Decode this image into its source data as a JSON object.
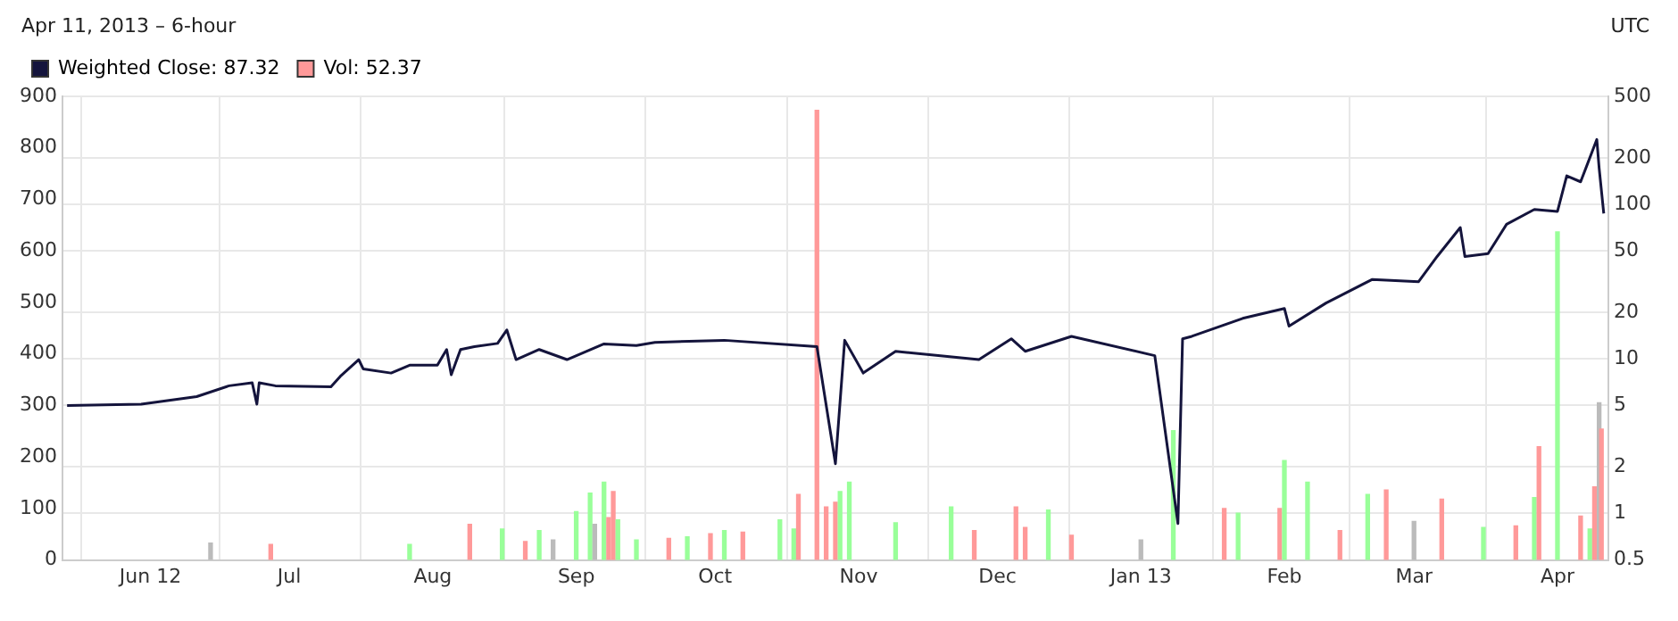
{
  "chart_data": {
    "type": "line",
    "subtitle": "Apr 11, 2013 – 6-hour",
    "annotations": [
      "UTC"
    ],
    "xlim": [
      "2012-05-13",
      "2013-04-12"
    ],
    "xticks": [
      {
        "value": "2012-06-01",
        "label": "Jun 12"
      },
      {
        "value": "2012-07-01",
        "label": "Jul"
      },
      {
        "value": "2012-08-01",
        "label": "Aug"
      },
      {
        "value": "2012-09-01",
        "label": "Sep"
      },
      {
        "value": "2012-10-01",
        "label": "Oct"
      },
      {
        "value": "2012-11-01",
        "label": "Nov"
      },
      {
        "value": "2012-12-01",
        "label": "Dec"
      },
      {
        "value": "2013-01-01",
        "label": "Jan 13"
      },
      {
        "value": "2013-02-01",
        "label": "Feb"
      },
      {
        "value": "2013-03-01",
        "label": "Mar"
      },
      {
        "value": "2013-04-01",
        "label": "Apr"
      }
    ],
    "ylim": [
      0,
      900
    ],
    "yticks": [
      0,
      100,
      200,
      300,
      400,
      500,
      600,
      700,
      800,
      900
    ],
    "y2lim": [
      0.5,
      500
    ],
    "y2ticks": [
      0.5,
      1,
      2,
      5,
      10,
      20,
      50,
      100,
      200,
      500
    ],
    "log": "y2",
    "grid": true,
    "legend": "top left",
    "marker": "none",
    "series": [
      {
        "name": "Weighted Close: 87.32",
        "axis": "y2",
        "color": "#14143c",
        "x": [
          "2012-05-14",
          "2012-05-30",
          "2012-06-11",
          "2012-06-18",
          "2012-06-23",
          "2012-06-24",
          "2012-06-24T12:00",
          "2012-06-28",
          "2012-07-10",
          "2012-07-12",
          "2012-07-16",
          "2012-07-17",
          "2012-07-23",
          "2012-07-27",
          "2012-08-02",
          "2012-08-04",
          "2012-08-05",
          "2012-08-07",
          "2012-08-10",
          "2012-08-15",
          "2012-08-17",
          "2012-08-19",
          "2012-08-24",
          "2012-08-30",
          "2012-09-07",
          "2012-09-14",
          "2012-09-18",
          "2012-10-03",
          "2012-10-23",
          "2012-10-27",
          "2012-10-29",
          "2012-11-02",
          "2012-11-09",
          "2012-11-27",
          "2012-12-04",
          "2012-12-07",
          "2012-12-17",
          "2013-01-04",
          "2013-01-09",
          "2013-01-10",
          "2013-01-12",
          "2013-01-23",
          "2013-02-01",
          "2013-02-02",
          "2013-02-10",
          "2013-02-20",
          "2013-03-02",
          "2013-03-06",
          "2013-03-11",
          "2013-03-12",
          "2013-03-17",
          "2013-03-21",
          "2013-03-27",
          "2013-04-01",
          "2013-04-03",
          "2013-04-06",
          "2013-04-09T12:00",
          "2013-04-10",
          "2013-04-11"
        ],
        "values": [
          5.0,
          5.1,
          5.7,
          6.7,
          7.0,
          5.1,
          7.0,
          6.7,
          6.6,
          7.7,
          9.9,
          8.6,
          8.1,
          9.1,
          9.1,
          11.5,
          7.9,
          11.5,
          12.0,
          12.6,
          15.4,
          9.9,
          11.5,
          9.9,
          12.5,
          12.2,
          12.8,
          13.2,
          12.0,
          2.1,
          13.2,
          8.1,
          11.2,
          9.9,
          13.5,
          11.2,
          14.0,
          10.5,
          0.86,
          13.5,
          14,
          18.3,
          21.2,
          16.3,
          23,
          32.7,
          31.6,
          46,
          70.8,
          46,
          48,
          74.3,
          92.7,
          90,
          153,
          140,
          263,
          172,
          87.32
        ]
      },
      {
        "name": "Vol: 52.37",
        "type": "bar",
        "color": "#ff9999",
        "x": [
          "2012-06-14",
          "2012-06-27",
          "2012-07-27",
          "2012-08-09",
          "2012-08-16",
          "2012-08-21",
          "2012-08-24",
          "2012-08-27",
          "2012-09-01",
          "2012-09-04",
          "2012-09-05",
          "2012-09-07",
          "2012-09-08",
          "2012-09-09",
          "2012-09-10",
          "2012-09-14",
          "2012-09-21",
          "2012-09-25",
          "2012-09-30",
          "2012-10-03",
          "2012-10-07",
          "2012-10-15",
          "2012-10-18",
          "2012-10-19",
          "2012-10-23",
          "2012-10-25",
          "2012-10-27",
          "2012-10-28",
          "2012-10-30",
          "2012-11-09",
          "2012-11-21",
          "2012-11-26",
          "2012-12-05",
          "2012-12-07",
          "2012-12-12",
          "2012-12-17",
          "2013-01-01",
          "2013-01-08",
          "2013-01-19",
          "2013-01-22",
          "2013-01-31",
          "2013-02-01",
          "2013-02-06",
          "2013-02-13",
          "2013-02-19",
          "2013-02-23",
          "2013-03-01",
          "2013-03-07",
          "2013-03-16",
          "2013-03-23",
          "2013-03-27",
          "2013-03-28",
          "2013-04-01",
          "2013-04-06",
          "2013-04-08",
          "2013-04-09",
          "2013-04-10",
          "2013-04-10T12:00"
        ],
        "values": [
          33,
          30,
          30,
          69,
          60,
          36,
          57,
          39,
          94,
          130,
          69,
          151,
          82,
          133,
          78,
          39,
          42,
          45,
          51,
          57,
          54,
          78,
          60,
          127,
          873,
          103,
          112,
          133,
          151,
          72,
          103,
          57,
          103,
          63,
          97,
          48,
          39,
          251,
          100,
          91,
          100,
          193,
          151,
          57,
          127,
          136,
          75,
          118,
          63,
          66,
          121,
          220,
          637,
          85,
          60,
          142,
          305,
          254
        ],
        "colors": [
          "#bbbbbb",
          "#ff9999",
          "#99ff99",
          "#ff9999",
          "#99ff99",
          "#ff9999",
          "#99ff99",
          "#bbbbbb",
          "#99ff99",
          "#99ff99",
          "#bbbbbb",
          "#99ff99",
          "#ff9999",
          "#ff9999",
          "#99ff99",
          "#99ff99",
          "#ff9999",
          "#99ff99",
          "#ff9999",
          "#99ff99",
          "#ff9999",
          "#99ff99",
          "#99ff99",
          "#ff9999",
          "#ff9999",
          "#ff9999",
          "#ff9999",
          "#99ff99",
          "#99ff99",
          "#99ff99",
          "#99ff99",
          "#ff9999",
          "#ff9999",
          "#ff9999",
          "#99ff99",
          "#ff9999",
          "#bbbbbb",
          "#99ff99",
          "#ff9999",
          "#99ff99",
          "#ff9999",
          "#99ff99",
          "#99ff99",
          "#ff9999",
          "#99ff99",
          "#ff9999",
          "#bbbbbb",
          "#ff9999",
          "#99ff99",
          "#ff9999",
          "#99ff99",
          "#ff9999",
          "#99ff99",
          "#ff9999",
          "#99ff99",
          "#ff9999",
          "#bbbbbb",
          "#ff9999"
        ]
      }
    ]
  }
}
